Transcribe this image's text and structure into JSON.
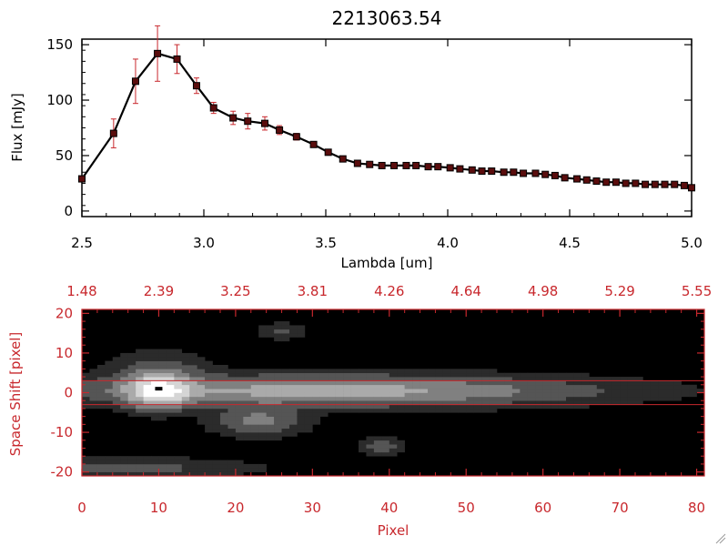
{
  "chart_data": [
    {
      "type": "line",
      "title": "2213063.54",
      "xlabel": "Lambda [um]",
      "ylabel": "Flux [mJy]",
      "xlim": [
        2.5,
        5.0
      ],
      "ylim": [
        -5,
        155
      ],
      "xticks": [
        "2.5",
        "3.0",
        "3.5",
        "4.0",
        "4.5",
        "5.0"
      ],
      "yticks": [
        "0",
        "50",
        "100",
        "150"
      ],
      "colors": {
        "line": "#000000",
        "marker": "#5a0d0d",
        "errorbar": "#c8282d"
      },
      "series": [
        {
          "name": "Flux",
          "x": [
            2.5,
            2.63,
            2.72,
            2.81,
            2.89,
            2.97,
            3.04,
            3.12,
            3.18,
            3.25,
            3.31,
            3.38,
            3.45,
            3.51,
            3.57,
            3.63,
            3.68,
            3.73,
            3.78,
            3.83,
            3.87,
            3.92,
            3.96,
            4.01,
            4.05,
            4.1,
            4.14,
            4.18,
            4.23,
            4.27,
            4.31,
            4.36,
            4.4,
            4.44,
            4.48,
            4.53,
            4.57,
            4.61,
            4.65,
            4.69,
            4.73,
            4.77,
            4.81,
            4.85,
            4.89,
            4.93,
            4.97,
            5.0
          ],
          "y": [
            29,
            70,
            117,
            142,
            137,
            113,
            93,
            84,
            81,
            79,
            73,
            67,
            60,
            53,
            47,
            43,
            42,
            41,
            41,
            41,
            41,
            40,
            40,
            39,
            38,
            37,
            36,
            36,
            35,
            35,
            34,
            34,
            33,
            32,
            30,
            29,
            28,
            27,
            26,
            26,
            25,
            25,
            24,
            24,
            24,
            24,
            23,
            21
          ],
          "yerr": [
            0,
            13,
            20,
            25,
            13,
            7,
            5,
            6,
            7,
            6,
            4,
            3,
            2,
            2,
            1,
            1,
            1,
            1,
            1,
            1,
            1,
            1,
            1,
            1,
            1,
            1,
            1,
            1,
            1,
            1,
            1,
            1,
            1,
            1,
            1,
            1,
            1,
            1,
            1,
            1,
            1,
            1,
            1,
            1,
            1,
            1,
            1,
            1
          ]
        }
      ]
    },
    {
      "type": "heatmap",
      "xlabel": "Pixel",
      "ylabel": "Space Shift [pixel]",
      "xlim": [
        0,
        81
      ],
      "ylim": [
        -21,
        21
      ],
      "xticks": [
        "0",
        "10",
        "20",
        "30",
        "40",
        "50",
        "60",
        "70",
        "80"
      ],
      "yticks": [
        "-20",
        "-10",
        "0",
        "10",
        "20"
      ],
      "top_axis_label_values": [
        "1.48",
        "2.39",
        "3.25",
        "3.81",
        "4.26",
        "4.64",
        "4.98",
        "5.29",
        "5.55"
      ],
      "extraction_aperture": [
        -3,
        3
      ],
      "peak_marker": [
        10,
        1
      ],
      "colors": {
        "axis": "#c8282d",
        "aperture": "#c8282d",
        "background": "#000000"
      },
      "sources": [
        {
          "x": 10,
          "y": 0.5,
          "sx": 2.6,
          "sy": 2.6,
          "amp": 1.0
        },
        {
          "x": 32,
          "y": 0.5,
          "sx": 20,
          "sy": 2.3,
          "amp": 0.55
        },
        {
          "x": 23,
          "y": -7,
          "sx": 3.5,
          "sy": 2.2,
          "amp": 0.3
        },
        {
          "x": 10,
          "y": 5,
          "sx": 4,
          "sy": 3,
          "amp": 0.18
        },
        {
          "x": 39,
          "y": -13.5,
          "sx": 1.5,
          "sy": 1.2,
          "amp": 0.25
        },
        {
          "x": 6,
          "y": -19,
          "sx": 10,
          "sy": 1.5,
          "amp": 0.15
        },
        {
          "x": 26,
          "y": 15.5,
          "sx": 2,
          "sy": 1.2,
          "amp": 0.12
        }
      ]
    }
  ]
}
